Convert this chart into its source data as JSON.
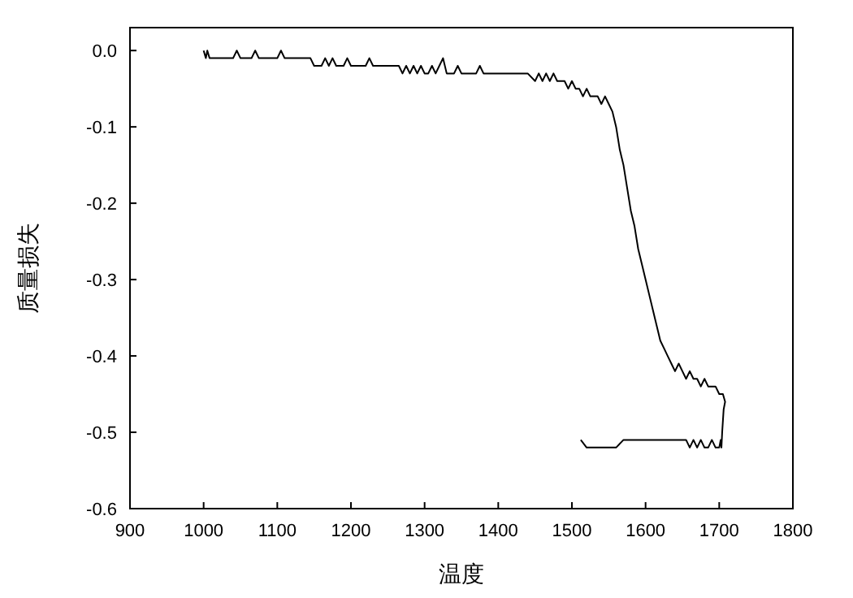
{
  "chart_data": {
    "type": "line",
    "xlabel": "温度",
    "ylabel": "质量损失",
    "xlim": [
      900,
      1800
    ],
    "ylim": [
      -0.6,
      0.03
    ],
    "xticks": [
      900,
      1000,
      1100,
      1200,
      1300,
      1400,
      1500,
      1600,
      1700,
      1800
    ],
    "yticks": [
      {
        "value": 0,
        "label": "0.0"
      },
      -0.1,
      -0.2,
      -0.3,
      -0.4,
      -0.5,
      -0.6
    ],
    "grid": false,
    "series": [
      {
        "color": "#000000",
        "x": [
          1000,
          1003,
          1005,
          1008,
          1012,
          1040,
          1045,
          1050,
          1065,
          1070,
          1075,
          1100,
          1105,
          1110,
          1145,
          1150,
          1160,
          1165,
          1170,
          1175,
          1180,
          1190,
          1195,
          1200,
          1220,
          1225,
          1230,
          1265,
          1270,
          1275,
          1280,
          1285,
          1290,
          1295,
          1300,
          1305,
          1310,
          1315,
          1320,
          1325,
          1330,
          1340,
          1345,
          1350,
          1370,
          1375,
          1380,
          1385,
          1390,
          1400,
          1410,
          1440,
          1450,
          1455,
          1460,
          1465,
          1470,
          1475,
          1480,
          1490,
          1495,
          1500,
          1505,
          1510,
          1515,
          1520,
          1525,
          1530,
          1535,
          1540,
          1545,
          1550,
          1555,
          1560,
          1565,
          1570,
          1575,
          1580,
          1585,
          1590,
          1595,
          1600,
          1605,
          1610,
          1615,
          1620,
          1625,
          1630,
          1635,
          1640,
          1645,
          1650,
          1655,
          1660,
          1665,
          1670,
          1675,
          1680,
          1685,
          1690,
          1695,
          1700,
          1705,
          1708,
          1706,
          1704,
          1703,
          1702,
          1700,
          1695,
          1690,
          1685,
          1680,
          1675,
          1670,
          1665,
          1660,
          1655,
          1650,
          1640,
          1620,
          1600,
          1580,
          1570,
          1560,
          1530,
          1520,
          1512
        ],
        "values": [
          0,
          -0.01,
          0,
          -0.01,
          -0.01,
          -0.01,
          0,
          -0.01,
          -0.01,
          0,
          -0.01,
          -0.01,
          0,
          -0.01,
          -0.01,
          -0.02,
          -0.02,
          -0.01,
          -0.02,
          -0.01,
          -0.02,
          -0.02,
          -0.01,
          -0.02,
          -0.02,
          -0.01,
          -0.02,
          -0.02,
          -0.03,
          -0.02,
          -0.03,
          -0.02,
          -0.03,
          -0.02,
          -0.03,
          -0.03,
          -0.02,
          -0.03,
          -0.02,
          -0.01,
          -0.03,
          -0.03,
          -0.02,
          -0.03,
          -0.03,
          -0.02,
          -0.03,
          -0.03,
          -0.03,
          -0.03,
          -0.03,
          -0.03,
          -0.04,
          -0.03,
          -0.04,
          -0.03,
          -0.04,
          -0.03,
          -0.04,
          -0.04,
          -0.05,
          -0.04,
          -0.05,
          -0.05,
          -0.06,
          -0.05,
          -0.06,
          -0.06,
          -0.06,
          -0.07,
          -0.06,
          -0.07,
          -0.08,
          -0.1,
          -0.13,
          -0.15,
          -0.18,
          -0.21,
          -0.23,
          -0.26,
          -0.28,
          -0.3,
          -0.32,
          -0.34,
          -0.36,
          -0.38,
          -0.39,
          -0.4,
          -0.41,
          -0.42,
          -0.41,
          -0.42,
          -0.43,
          -0.42,
          -0.43,
          -0.43,
          -0.44,
          -0.43,
          -0.44,
          -0.44,
          -0.44,
          -0.45,
          -0.45,
          -0.46,
          -0.47,
          -0.5,
          -0.52,
          -0.51,
          -0.52,
          -0.52,
          -0.51,
          -0.52,
          -0.52,
          -0.51,
          -0.52,
          -0.51,
          -0.52,
          -0.51,
          -0.51,
          -0.51,
          -0.51,
          -0.51,
          -0.51,
          -0.51,
          -0.52,
          -0.52,
          -0.52,
          -0.51
        ]
      }
    ]
  }
}
